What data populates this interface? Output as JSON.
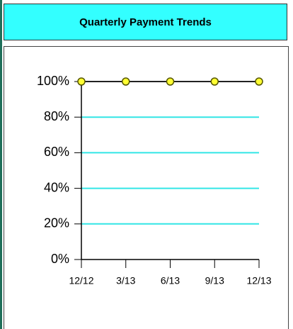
{
  "chart_data": {
    "type": "line",
    "title": "Quarterly Payment Trends",
    "categories": [
      "12/12",
      "3/13",
      "6/13",
      "9/13",
      "12/13"
    ],
    "values": [
      100,
      100,
      100,
      100,
      100
    ],
    "color": "#222222",
    "marker_color": "#ffff33",
    "ylim": [
      0,
      100
    ],
    "yticks": [
      {
        "value": 0,
        "label": "0%"
      },
      {
        "value": 20,
        "label": "20%"
      },
      {
        "value": 40,
        "label": "40%"
      },
      {
        "value": 60,
        "label": "60%"
      },
      {
        "value": 80,
        "label": "80%"
      },
      {
        "value": 100,
        "label": "100%"
      }
    ],
    "grid": true,
    "grid_color": "#33e6e6"
  }
}
